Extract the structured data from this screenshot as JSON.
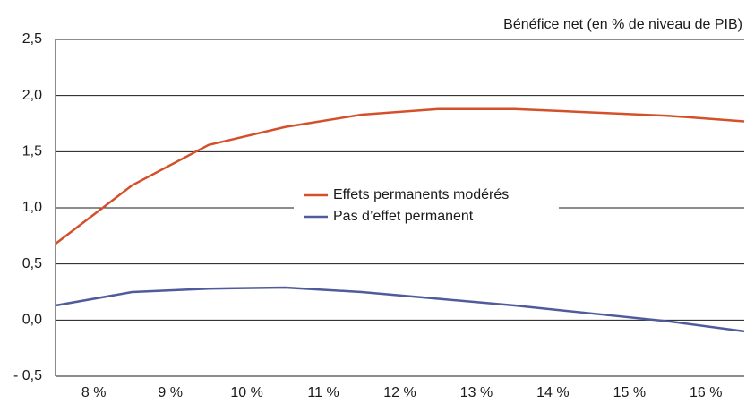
{
  "chart_data": {
    "type": "line",
    "y_axis_label": "Bénéfice net (en % de niveau de PIB)",
    "x": [
      7.5,
      8.5,
      9.5,
      10.5,
      11.5,
      12.5,
      13.5,
      14.5,
      15.5,
      16.5
    ],
    "xlim": [
      7.5,
      16.5
    ],
    "xticks": [
      {
        "value": 8,
        "label": "8 %"
      },
      {
        "value": 9,
        "label": "9 %"
      },
      {
        "value": 10,
        "label": "10 %"
      },
      {
        "value": 11,
        "label": "11 %"
      },
      {
        "value": 12,
        "label": "12 %"
      },
      {
        "value": 13,
        "label": "13 %"
      },
      {
        "value": 14,
        "label": "14 %"
      },
      {
        "value": 15,
        "label": "15 %"
      },
      {
        "value": 16,
        "label": "16 %"
      }
    ],
    "ylim": [
      -0.5,
      2.5
    ],
    "yticks": [
      {
        "value": -0.5,
        "label": "- 0,5"
      },
      {
        "value": 0,
        "label": "0,0"
      },
      {
        "value": 0.5,
        "label": "0,5"
      },
      {
        "value": 1,
        "label": "1,0"
      },
      {
        "value": 1.5,
        "label": "1,5"
      },
      {
        "value": 2,
        "label": "2,0"
      },
      {
        "value": 2.5,
        "label": "2,5"
      }
    ],
    "grid": true,
    "legend": "center",
    "series": [
      {
        "name": "Effets permanents modérés",
        "color": "#d4502a",
        "values": [
          0.68,
          1.2,
          1.56,
          1.72,
          1.83,
          1.88,
          1.88,
          1.85,
          1.82,
          1.77
        ]
      },
      {
        "name": "Pas d’effet permanent",
        "color": "#4f5b9c",
        "values": [
          0.13,
          0.25,
          0.28,
          0.29,
          0.25,
          0.19,
          0.13,
          0.06,
          -0.01,
          -0.1
        ]
      }
    ]
  }
}
